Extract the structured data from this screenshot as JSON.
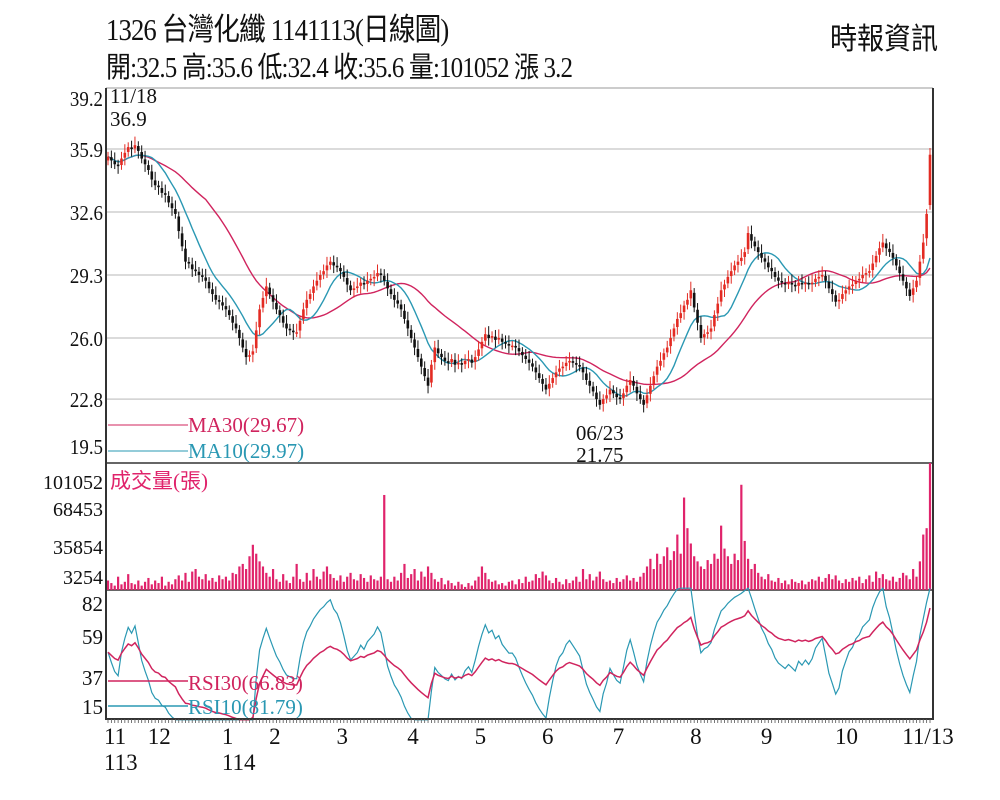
{
  "header": {
    "title": "1326  台灣化纖 1141113(日線圖)",
    "quote": "開:32.5 高:35.6 低:32.4 收:35.6 量:101052 漲 3.2",
    "brand": "時報資訊"
  },
  "colors": {
    "up": "#e32b23",
    "down": "#111111",
    "ma30": "#d0245e",
    "ma10": "#2a98b3",
    "volume": "#e0236b",
    "rsi30": "#d0245e",
    "rsi10": "#2a98b3",
    "grid": "#cfcfcf"
  },
  "chart_data": {
    "type": "candlestick",
    "price": {
      "yticks": [
        "39.2",
        "35.9",
        "32.6",
        "29.3",
        "26.0",
        "22.8",
        "19.5"
      ],
      "ylim": [
        19.5,
        39.2
      ],
      "legend": {
        "ma30": "MA30(29.67)",
        "ma10": "MA10(29.97)"
      },
      "annotations": [
        {
          "date": "11/18",
          "value": "36.9",
          "label_date": "11/18",
          "label_value": "36.9"
        },
        {
          "date": "06/23",
          "value": "21.75",
          "label_date": "06/23",
          "label_value": "21.75",
          "day": 146
        }
      ],
      "close": [
        35.5,
        35.3,
        35.1,
        35.0,
        35.4,
        35.7,
        36.0,
        35.9,
        36.1,
        35.8,
        35.4,
        35.1,
        34.8,
        34.3,
        34.0,
        33.9,
        33.6,
        33.5,
        33.1,
        32.8,
        32.5,
        31.6,
        30.8,
        30.0,
        29.9,
        29.6,
        29.5,
        29.3,
        29.2,
        29.0,
        28.6,
        28.3,
        28.0,
        27.9,
        27.7,
        27.5,
        27.2,
        26.8,
        26.5,
        26.0,
        25.5,
        25.0,
        25.1,
        25.3,
        26.4,
        27.5,
        28.1,
        28.7,
        28.3,
        27.9,
        27.5,
        27.2,
        26.8,
        26.5,
        26.4,
        26.3,
        26.3,
        26.9,
        27.5,
        28.0,
        28.3,
        28.7,
        29.0,
        29.3,
        29.5,
        29.8,
        30.0,
        29.8,
        29.7,
        29.5,
        29.2,
        28.8,
        28.5,
        28.6,
        28.7,
        28.9,
        28.8,
        29.0,
        29.1,
        29.2,
        29.4,
        29.3,
        29.0,
        28.6,
        28.3,
        28.0,
        27.8,
        27.5,
        27.0,
        26.5,
        26.0,
        25.5,
        25.0,
        24.5,
        24.0,
        23.5,
        24.6,
        25.5,
        25.2,
        25.0,
        24.8,
        24.7,
        24.9,
        24.6,
        24.7,
        24.6,
        24.8,
        24.9,
        24.7,
        25.0,
        25.4,
        25.8,
        26.2,
        26.0,
        26.1,
        25.9,
        26.0,
        25.8,
        25.7,
        25.6,
        25.6,
        25.5,
        25.3,
        25.1,
        24.9,
        24.7,
        24.5,
        24.2,
        23.9,
        23.6,
        23.3,
        23.6,
        23.9,
        24.2,
        24.4,
        24.5,
        24.7,
        24.8,
        24.7,
        24.6,
        24.5,
        24.2,
        23.8,
        23.5,
        23.2,
        22.8,
        22.5,
        22.8,
        23.0,
        23.3,
        23.1,
        22.9,
        22.8,
        23.1,
        23.5,
        23.8,
        23.5,
        23.1,
        22.8,
        22.5,
        23.0,
        23.5,
        24.0,
        24.5,
        24.8,
        25.2,
        25.5,
        26.0,
        26.5,
        27.0,
        27.3,
        27.7,
        28.0,
        28.5,
        27.6,
        26.8,
        26.0,
        26.2,
        26.3,
        26.5,
        27.2,
        27.8,
        28.5,
        28.8,
        29.2,
        29.5,
        29.8,
        30.0,
        30.2,
        30.5,
        31.5,
        31.1,
        30.8,
        30.5,
        30.2,
        30.0,
        29.7,
        29.5,
        29.2,
        29.0,
        28.9,
        28.8,
        28.9,
        28.8,
        28.7,
        28.9,
        28.8,
        28.9,
        28.8,
        28.9,
        29.1,
        29.2,
        29.3,
        29.0,
        28.6,
        28.3,
        27.9,
        28.0,
        28.3,
        28.5,
        28.7,
        28.8,
        29.0,
        29.1,
        29.3,
        29.4,
        29.5,
        29.9,
        30.3,
        30.7,
        31.0,
        30.7,
        30.5,
        30.2,
        29.8,
        29.4,
        29.0,
        28.6,
        28.2,
        28.6,
        29.0,
        30.0,
        31.0,
        32.5,
        35.6
      ]
    },
    "volume": {
      "title": "成交量(張)",
      "yticks": [
        "101052",
        "68453",
        "35854",
        "3254"
      ],
      "ymax": 101052,
      "values": [
        9000,
        7000,
        5000,
        12000,
        6000,
        8000,
        14000,
        7000,
        6000,
        9000,
        5000,
        8000,
        11000,
        6000,
        9000,
        7000,
        12000,
        5000,
        8000,
        6000,
        10000,
        13000,
        9000,
        15000,
        8000,
        16000,
        18000,
        12000,
        10000,
        14000,
        9000,
        11000,
        8000,
        13000,
        10000,
        12000,
        9000,
        15000,
        14000,
        20000,
        22000,
        18000,
        28000,
        37000,
        30000,
        24000,
        20000,
        15000,
        12000,
        18000,
        10000,
        8000,
        14000,
        9000,
        7000,
        12000,
        22000,
        10000,
        8000,
        15000,
        9000,
        18000,
        12000,
        10000,
        16000,
        20000,
        14000,
        11000,
        9000,
        13000,
        8000,
        12000,
        15000,
        10000,
        9000,
        14000,
        11000,
        8000,
        13000,
        10000,
        9000,
        12000,
        76000,
        10000,
        8000,
        12000,
        9000,
        15000,
        22000,
        11000,
        14000,
        18000,
        9000,
        16000,
        12000,
        20000,
        15000,
        10000,
        8000,
        11000,
        6000,
        9000,
        7000,
        5000,
        8000,
        6000,
        4000,
        7000,
        5000,
        9000,
        12000,
        20000,
        15000,
        10000,
        8000,
        9000,
        6000,
        7000,
        5000,
        8000,
        9000,
        6000,
        10000,
        7000,
        12000,
        8000,
        9000,
        14000,
        11000,
        16000,
        13000,
        9000,
        7000,
        11000,
        8000,
        6000,
        10000,
        7000,
        9000,
        12000,
        8000,
        18000,
        10000,
        14000,
        9000,
        12000,
        16000,
        10000,
        8000,
        9000,
        7000,
        11000,
        8000,
        10000,
        13000,
        9000,
        11000,
        8000,
        12000,
        15000,
        20000,
        26000,
        18000,
        30000,
        22000,
        28000,
        35000,
        25000,
        32000,
        45000,
        30000,
        74000,
        50000,
        38000,
        28000,
        24000,
        20000,
        18000,
        25000,
        22000,
        30000,
        26000,
        52000,
        34000,
        28000,
        22000,
        30000,
        25000,
        84000,
        40000,
        26000,
        18000,
        22000,
        15000,
        12000,
        10000,
        14000,
        9000,
        8000,
        11000,
        7000,
        9000,
        6000,
        10000,
        8000,
        7000,
        9000,
        6000,
        8000,
        10000,
        9000,
        12000,
        8000,
        11000,
        14000,
        10000,
        13000,
        9000,
        7000,
        10000,
        8000,
        11000,
        9000,
        12000,
        7000,
        10000,
        13000,
        8000,
        16000,
        11000,
        14000,
        10000,
        9000,
        12000,
        8000,
        11000,
        15000,
        13000,
        10000,
        18000,
        12000,
        24000,
        45000,
        50000,
        101052
      ]
    },
    "rsi": {
      "yticks": [
        "82",
        "59",
        "37",
        "15"
      ],
      "ylim": [
        15,
        82
      ],
      "legend": {
        "rsi30": "RSI30(66.83)",
        "rsi10": "RSI10(81.79)"
      }
    },
    "xaxis": {
      "months": [
        {
          "label": "11",
          "day": 0,
          "year": "113"
        },
        {
          "label": "12",
          "day": 13
        },
        {
          "label": "1",
          "day": 35,
          "year": "114"
        },
        {
          "label": "2",
          "day": 49
        },
        {
          "label": "3",
          "day": 69
        },
        {
          "label": "4",
          "day": 90
        },
        {
          "label": "5",
          "day": 110
        },
        {
          "label": "6",
          "day": 130
        },
        {
          "label": "7",
          "day": 151
        },
        {
          "label": "8",
          "day": 174
        },
        {
          "label": "9",
          "day": 195
        },
        {
          "label": "10",
          "day": 217
        },
        {
          "label": "11/13",
          "day": 244
        }
      ]
    }
  }
}
